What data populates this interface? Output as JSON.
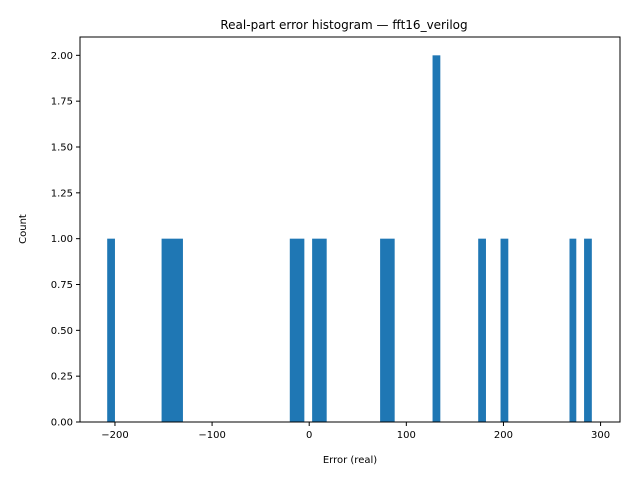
{
  "chart_data": {
    "type": "bar",
    "title": "Real-part error histogram — fft16_verilog",
    "xlabel": "Error (real)",
    "ylabel": "Count",
    "xlim": [
      -236,
      320
    ],
    "ylim": [
      0,
      2.1
    ],
    "xticks": [
      -200,
      -100,
      0,
      100,
      200,
      300
    ],
    "xtick_labels": [
      "−200",
      "−100",
      "0",
      "100",
      "200",
      "300"
    ],
    "yticks": [
      0,
      0.25,
      0.5,
      0.75,
      1.0,
      1.25,
      1.5,
      1.75,
      2.0
    ],
    "ytick_labels": [
      "0.00",
      "0.25",
      "0.50",
      "0.75",
      "1.00",
      "1.25",
      "1.50",
      "1.75",
      "2.00"
    ],
    "grid": false,
    "color": "#1f77b4",
    "bins": [
      {
        "x0": -208,
        "x1": -200,
        "count": 1
      },
      {
        "x0": -152,
        "x1": -130,
        "count": 1
      },
      {
        "x0": -20,
        "x1": -5,
        "count": 1
      },
      {
        "x0": 3,
        "x1": 18,
        "count": 1
      },
      {
        "x0": 73,
        "x1": 88,
        "count": 1
      },
      {
        "x0": 127,
        "x1": 135,
        "count": 2
      },
      {
        "x0": 174,
        "x1": 182,
        "count": 1
      },
      {
        "x0": 197,
        "x1": 205,
        "count": 1
      },
      {
        "x0": 268,
        "x1": 275,
        "count": 1
      },
      {
        "x0": 283,
        "x1": 291,
        "count": 1
      }
    ]
  }
}
